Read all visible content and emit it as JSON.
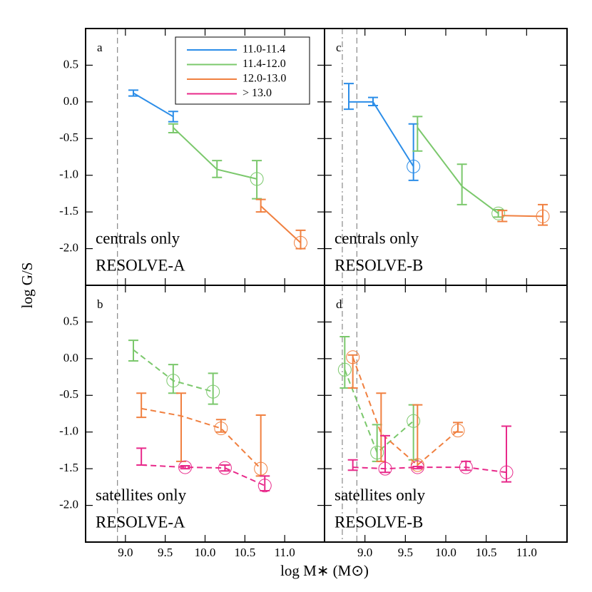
{
  "chart_data": [
    {
      "type": "line",
      "panel_label": "a",
      "notes": [
        "centrals only",
        "RESOLVE-A"
      ],
      "linestyle": "solid",
      "ylabel": "log G/S",
      "xlim": [
        8.5,
        11.5
      ],
      "ylim": [
        -2.5,
        1.0
      ],
      "xticks": [
        9,
        9.5,
        10,
        10.5,
        11
      ],
      "yticks": [
        {
          "value": -2,
          "label": "-2.0"
        },
        -1.5,
        {
          "value": -1,
          "label": "-1.0"
        },
        -0.5,
        {
          "value": 0,
          "label": "0.0"
        },
        0.5
      ],
      "vlines": [
        {
          "x": 8.9,
          "style": "dashed"
        }
      ],
      "legend": [
        {
          "name": "11.0-11.4",
          "color": "#2b8de8"
        },
        {
          "name": "11.4-12.0",
          "color": "#7bc86c"
        },
        {
          "name": "12.0-13.0",
          "color": "#f08040"
        },
        {
          "name": "> 13.0",
          "color": "#e8298a"
        }
      ],
      "series": [
        {
          "color": "#2b8de8",
          "x": [
            9.1,
            9.6
          ],
          "values": [
            0.12,
            -0.2
          ],
          "lower": [
            0.08,
            -0.27
          ],
          "upper": [
            0.16,
            -0.13
          ],
          "circled": [
            false,
            false
          ]
        },
        {
          "color": "#7bc86c",
          "x": [
            9.6,
            10.15,
            10.65
          ],
          "values": [
            -0.35,
            -0.92,
            -1.05
          ],
          "lower": [
            -0.42,
            -1.03,
            -1.32
          ],
          "upper": [
            -0.3,
            -0.8,
            -0.8
          ],
          "circled": [
            false,
            false,
            true
          ]
        },
        {
          "color": "#f08040",
          "x": [
            10.7,
            11.2
          ],
          "values": [
            -1.42,
            -1.92
          ],
          "lower": [
            -1.5,
            -2.0
          ],
          "upper": [
            -1.33,
            -1.75
          ],
          "circled": [
            false,
            true
          ]
        }
      ]
    },
    {
      "type": "line",
      "panel_label": "c",
      "notes": [
        "centrals only",
        "RESOLVE-B"
      ],
      "linestyle": "solid",
      "xlim": [
        8.5,
        11.5
      ],
      "ylim": [
        -2.5,
        1.0
      ],
      "xticks": [
        9,
        9.5,
        10,
        10.5,
        11
      ],
      "yticks": [
        -2,
        -1.5,
        -1,
        -0.5,
        0,
        0.5
      ],
      "vlines": [
        {
          "x": 8.72,
          "style": "dashdot"
        },
        {
          "x": 8.9,
          "style": "dashed"
        }
      ],
      "series": [
        {
          "color": "#2b8de8",
          "x": [
            8.8,
            9.1,
            9.6
          ],
          "values": [
            0.0,
            0.0,
            -0.88
          ],
          "lower": [
            -0.1,
            -0.05,
            -1.07
          ],
          "upper": [
            0.25,
            0.06,
            -0.3
          ],
          "circled": [
            false,
            false,
            true
          ]
        },
        {
          "color": "#7bc86c",
          "x": [
            9.65,
            10.2,
            10.65
          ],
          "values": [
            -0.35,
            -1.15,
            -1.52
          ],
          "lower": [
            -0.67,
            -1.4,
            -1.57
          ],
          "upper": [
            -0.2,
            -0.85,
            -1.47
          ],
          "circled": [
            false,
            false,
            true
          ]
        },
        {
          "color": "#f08040",
          "x": [
            10.7,
            11.2
          ],
          "values": [
            -1.55,
            -1.56
          ],
          "lower": [
            -1.63,
            -1.68
          ],
          "upper": [
            -1.48,
            -1.4
          ],
          "circled": [
            false,
            true
          ]
        }
      ]
    },
    {
      "type": "line",
      "panel_label": "b",
      "notes": [
        "satellites only",
        "RESOLVE-A"
      ],
      "linestyle": "dashed",
      "xlabel": "log M∗ (M⊙)",
      "xlim": [
        8.5,
        11.5
      ],
      "ylim": [
        -2.5,
        1.0
      ],
      "xticks": [
        {
          "value": 9,
          "label": "9.0"
        },
        9.5,
        {
          "value": 10,
          "label": "10.0"
        },
        10.5,
        {
          "value": 11,
          "label": "11.0"
        }
      ],
      "yticks": [
        {
          "value": -2,
          "label": "-2.0"
        },
        -1.5,
        {
          "value": -1,
          "label": "-1.0"
        },
        -0.5,
        {
          "value": 0,
          "label": "0.0"
        },
        0.5
      ],
      "vlines": [
        {
          "x": 8.9,
          "style": "dashed"
        }
      ],
      "series": [
        {
          "color": "#7bc86c",
          "x": [
            9.1,
            9.6,
            10.1
          ],
          "values": [
            0.12,
            -0.3,
            -0.45
          ],
          "lower": [
            -0.03,
            -0.47,
            -0.62
          ],
          "upper": [
            0.25,
            -0.08,
            -0.2
          ],
          "circled": [
            false,
            true,
            true
          ]
        },
        {
          "color": "#f08040",
          "x": [
            9.2,
            9.7,
            10.2,
            10.7
          ],
          "values": [
            -0.68,
            -0.78,
            -0.95,
            -1.5
          ],
          "lower": [
            -0.8,
            -1.4,
            -1.0,
            -1.6
          ],
          "upper": [
            -0.47,
            -0.47,
            -0.83,
            -0.77
          ],
          "circled": [
            false,
            false,
            true,
            true
          ]
        },
        {
          "color": "#e8298a",
          "x": [
            9.2,
            9.75,
            10.25,
            10.75
          ],
          "values": [
            -1.45,
            -1.48,
            -1.49,
            -1.73
          ],
          "lower": [
            -1.45,
            -1.5,
            -1.53,
            -1.8
          ],
          "upper": [
            -1.22,
            -1.46,
            -1.45,
            -1.6
          ],
          "circled": [
            false,
            true,
            true,
            true
          ]
        }
      ]
    },
    {
      "type": "line",
      "panel_label": "d",
      "notes": [
        "satellites only",
        "RESOLVE-B"
      ],
      "linestyle": "dashed",
      "xlim": [
        8.5,
        11.5
      ],
      "ylim": [
        -2.5,
        1.0
      ],
      "xticks": [
        {
          "value": 9,
          "label": "9.0"
        },
        9.5,
        {
          "value": 10,
          "label": "10.0"
        },
        10.5,
        {
          "value": 11,
          "label": "11.0"
        }
      ],
      "yticks": [
        -2,
        -1.5,
        -1,
        -0.5,
        0,
        0.5
      ],
      "vlines": [
        {
          "x": 8.72,
          "style": "dashdot"
        },
        {
          "x": 8.9,
          "style": "dashed"
        }
      ],
      "series": [
        {
          "color": "#7bc86c",
          "x": [
            8.75,
            9.15,
            9.6
          ],
          "values": [
            -0.15,
            -1.28,
            -0.85
          ],
          "lower": [
            -0.4,
            -1.4,
            -1.38
          ],
          "upper": [
            0.3,
            -0.9,
            -0.63
          ],
          "circled": [
            true,
            true,
            true
          ]
        },
        {
          "color": "#f08040",
          "x": [
            8.85,
            9.2,
            9.65,
            10.15
          ],
          "values": [
            0.02,
            -1.02,
            -1.45,
            -0.98
          ],
          "lower": [
            -0.4,
            -1.4,
            -1.47,
            -1.0
          ],
          "upper": [
            0.05,
            -0.47,
            -0.63,
            -0.87
          ],
          "circled": [
            true,
            false,
            true,
            true
          ]
        },
        {
          "color": "#e8298a",
          "x": [
            8.85,
            9.25,
            9.65,
            10.25,
            10.75
          ],
          "values": [
            -1.48,
            -1.5,
            -1.48,
            -1.48,
            -1.55
          ],
          "lower": [
            -1.52,
            -1.55,
            -1.5,
            -1.52,
            -1.68
          ],
          "upper": [
            -1.38,
            -1.05,
            -1.47,
            -1.4,
            -0.92
          ],
          "circled": [
            false,
            true,
            true,
            true,
            true
          ]
        }
      ]
    }
  ]
}
